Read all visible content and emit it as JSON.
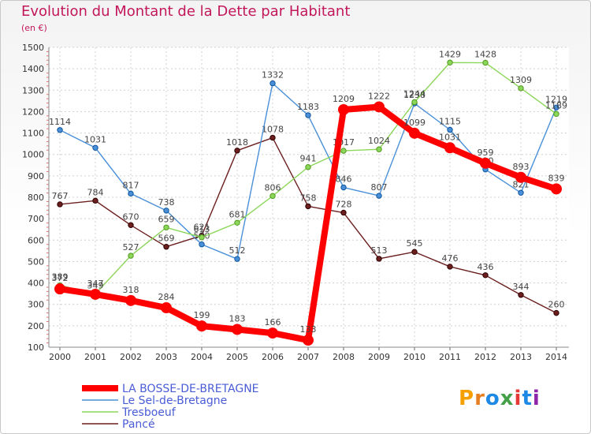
{
  "chart_data": {
    "type": "line",
    "title": "Evolution du Montant de la Dette par Habitant",
    "subtitle": "(en €)",
    "x": [
      "2000",
      "2001",
      "2002",
      "2003",
      "2004",
      "2005",
      "2006",
      "2007",
      "2008",
      "2009",
      "2010",
      "2011",
      "2012",
      "2013",
      "2014"
    ],
    "ylim": [
      100,
      1500
    ],
    "yticks": [
      100,
      200,
      300,
      400,
      500,
      600,
      700,
      800,
      900,
      1000,
      1100,
      1200,
      1300,
      1400,
      1500
    ],
    "grid": true,
    "legend_position": "bottom-left",
    "series": [
      {
        "name": "Pancé",
        "color": "#6b1f1f",
        "values": [
          767,
          784,
          670,
          569,
          621,
          1018,
          1078,
          758,
          728,
          513,
          545,
          476,
          436,
          344,
          260
        ]
      },
      {
        "name": "Le Sel-de-Bretagne",
        "color": "#4a90d9",
        "values": [
          1114,
          1031,
          817,
          738,
          580,
          512,
          1332,
          1183,
          846,
          807,
          1238,
          1115,
          930,
          821,
          1219
        ]
      },
      {
        "name": "Tresboeuf",
        "color": "#8cd65a",
        "values": [
          389,
          349,
          527,
          659,
          613,
          681,
          806,
          941,
          1017,
          1024,
          1244,
          1429,
          1428,
          1309,
          1189
        ]
      },
      {
        "name": "LA BOSSE-DE-BRETAGNE",
        "color": "#ff0000",
        "values": [
          372,
          347,
          318,
          284,
          199,
          183,
          166,
          133,
          1209,
          1222,
          1099,
          1031,
          959,
          893,
          839
        ]
      }
    ],
    "legend_order": [
      "LA BOSSE-DE-BRETAGNE",
      "Le Sel-de-Bretagne",
      "Tresboeuf",
      "Pancé"
    ]
  },
  "logo": {
    "text": "Proxiti"
  }
}
